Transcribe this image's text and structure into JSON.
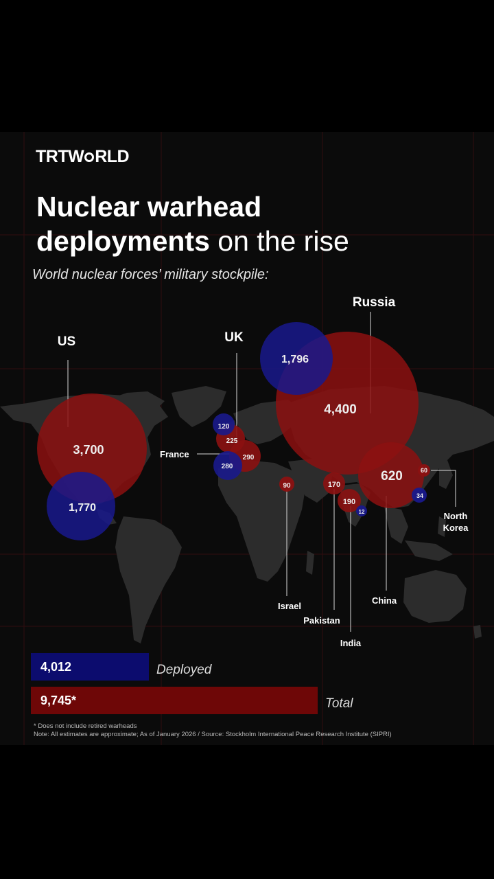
{
  "brand": {
    "logo_left": "TRT",
    "logo_right": "WRLD"
  },
  "header": {
    "title_bold_1": "Nuclear warhead",
    "title_bold_2": "deployments",
    "title_light": "on the rise",
    "subtitle": "World nuclear forces’ military stockpile:"
  },
  "colors": {
    "deployed": "#0c0c6e",
    "total": "#6e0707",
    "bubble_total": "#8c1111",
    "bubble_deployed": "#19198c"
  },
  "chart_data": [
    {
      "type": "bubble-map",
      "series": [
        {
          "name": "Total",
          "values": [
            {
              "country": "US",
              "value": 3700
            },
            {
              "country": "Russia",
              "value": 4400
            },
            {
              "country": "UK",
              "value": 225
            },
            {
              "country": "France",
              "value": 290
            },
            {
              "country": "China",
              "value": 620
            },
            {
              "country": "India",
              "value": 190
            },
            {
              "country": "Pakistan",
              "value": 170
            },
            {
              "country": "Israel",
              "value": 90
            },
            {
              "country": "North Korea",
              "value": 60
            }
          ]
        },
        {
          "name": "Deployed",
          "values": [
            {
              "country": "US",
              "value": 1770
            },
            {
              "country": "Russia",
              "value": 1796
            },
            {
              "country": "UK",
              "value": 120
            },
            {
              "country": "France",
              "value": 280
            },
            {
              "country": "China",
              "value": 34
            },
            {
              "country": "India",
              "value": 12
            }
          ]
        }
      ],
      "bubble_labels": {
        "us_total": "3,700",
        "us_deployed": "1,770",
        "russia_total": "4,400",
        "russia_deployed": "1,796",
        "uk_total": "225",
        "uk_deployed": "120",
        "france_total": "290",
        "france_deployed": "280",
        "china_total": "620",
        "china_deployed": "34",
        "india_total": "190",
        "india_deployed": "12",
        "pakistan_total": "170",
        "israel_total": "90",
        "nk_total": "60"
      },
      "country_labels": {
        "us": "US",
        "russia": "Russia",
        "uk": "UK",
        "france": "France",
        "china": "China",
        "israel": "Israel",
        "pakistan": "Pakistan",
        "india": "India",
        "nk_1": "North",
        "nk_2": "Korea"
      }
    },
    {
      "type": "bar",
      "categories": [
        "Deployed",
        "Total"
      ],
      "values": [
        4012,
        9745
      ],
      "value_labels": [
        "4,012",
        "9,745*"
      ]
    }
  ],
  "legend": {
    "deployed": "Deployed",
    "total": "Total"
  },
  "footnotes": {
    "line1": "* Does not include retired warheads",
    "line2": "Note: All estimates are approximate; As of January 2026  / Source: Stockholm International Peace Research Institute (SIPRI)"
  }
}
